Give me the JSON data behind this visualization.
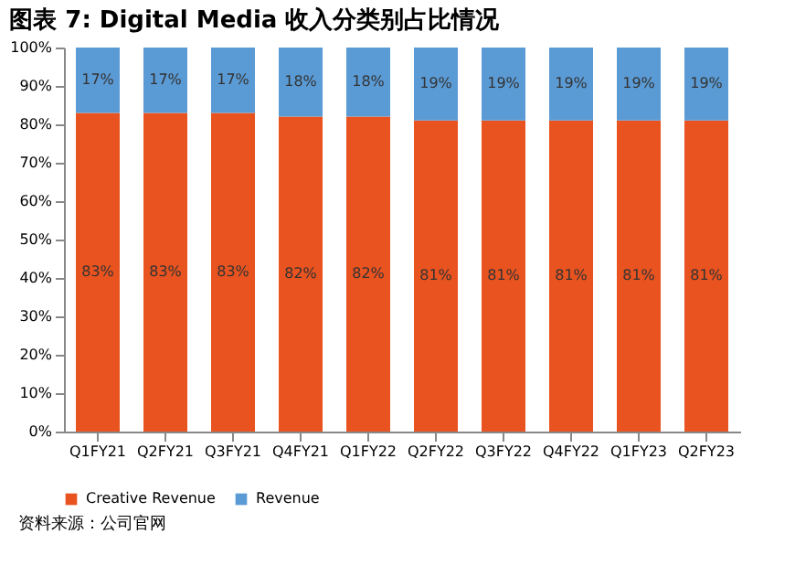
{
  "chart_data": {
    "type": "bar",
    "title": "图表 7: Digital Media 收入分类别占比情况",
    "stacked": true,
    "categories": [
      "Q1FY21",
      "Q2FY21",
      "Q3FY21",
      "Q4FY21",
      "Q1FY22",
      "Q2FY22",
      "Q3FY22",
      "Q4FY22",
      "Q1FY23",
      "Q2FY23"
    ],
    "series": [
      {
        "name": "Creative Revenue",
        "color": "#e8531f",
        "values": [
          83,
          83,
          83,
          82,
          82,
          81,
          81,
          81,
          81,
          81
        ],
        "value_labels": [
          "83%",
          "83%",
          "83%",
          "82%",
          "82%",
          "81%",
          "81%",
          "81%",
          "81%",
          "81%"
        ]
      },
      {
        "name": "Revenue",
        "color": "#5b9bd5",
        "values": [
          17,
          17,
          17,
          18,
          18,
          19,
          19,
          19,
          19,
          19
        ],
        "value_labels": [
          "17%",
          "17%",
          "17%",
          "18%",
          "18%",
          "19%",
          "19%",
          "19%",
          "19%",
          "19%"
        ]
      }
    ],
    "ylim": [
      0,
      100
    ],
    "yticks": [
      {
        "value": 0,
        "label": "0%"
      },
      {
        "value": 10,
        "label": "10%"
      },
      {
        "value": 20,
        "label": "20%"
      },
      {
        "value": 30,
        "label": "30%"
      },
      {
        "value": 40,
        "label": "40%"
      },
      {
        "value": 50,
        "label": "50%"
      },
      {
        "value": 60,
        "label": "60%"
      },
      {
        "value": 70,
        "label": "70%"
      },
      {
        "value": 80,
        "label": "80%"
      },
      {
        "value": 90,
        "label": "90%"
      },
      {
        "value": 100,
        "label": "100%"
      }
    ],
    "legend": "bottom",
    "grid": false,
    "annotations": [
      "资料来源：公司官网"
    ]
  }
}
